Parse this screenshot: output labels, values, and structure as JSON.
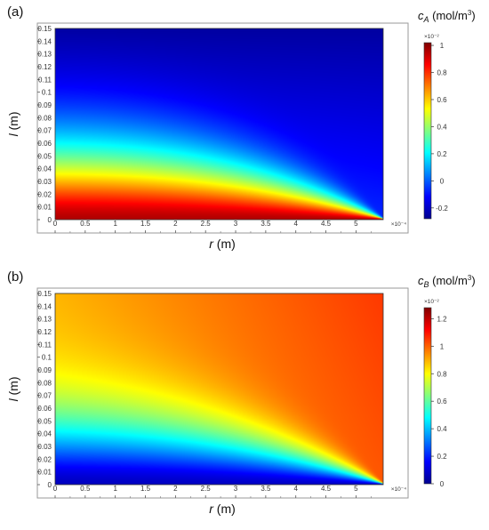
{
  "chart_data": [
    {
      "type": "heatmap",
      "panel_label": "(a)",
      "xlabel_var": "r",
      "xlabel_unit": " (m)",
      "ylabel_var": "l",
      "ylabel_unit": " (m)",
      "x_ticks": [
        "0",
        "0.5",
        "1",
        "1.5",
        "2",
        "2.5",
        "3",
        "3.5",
        "4",
        "4.5",
        "5"
      ],
      "x_tick_values": [
        0,
        0.5,
        1,
        1.5,
        2,
        2.5,
        3,
        3.5,
        4,
        4.5,
        5
      ],
      "x_exponent": "×10⁻⁴",
      "xlim": [
        0,
        5.6
      ],
      "y_ticks": [
        "0",
        "0.01",
        "0.02",
        "0.03",
        "0.04",
        "0.05",
        "0.06",
        "0.07",
        "0.08",
        "0.09",
        "0.1",
        "0.11",
        "0.12",
        "0.13",
        "0.14",
        "0.15"
      ],
      "y_tick_values": [
        0,
        0.01,
        0.02,
        0.03,
        0.04,
        0.05,
        0.06,
        0.07,
        0.08,
        0.09,
        0.1,
        0.11,
        0.12,
        0.13,
        0.14,
        0.15
      ],
      "ylim": [
        0,
        0.15
      ],
      "colorbar": {
        "var": "c",
        "sub": "A",
        "unit": " (mol/m",
        "unit_sup": "3",
        "unit_end": ")",
        "exponent": "×10⁻²",
        "ticks": [
          "1",
          "0.8",
          "0.6",
          "0.4",
          "0.2",
          "0",
          "-0.2"
        ],
        "tick_values": [
          1,
          0.8,
          0.6,
          0.4,
          0.2,
          0,
          -0.2
        ],
        "range": [
          -0.28,
          1.02
        ]
      },
      "field": "concentration of A, highest near l=0 and small r, decaying with l and r"
    },
    {
      "type": "heatmap",
      "panel_label": "(b)",
      "xlabel_var": "r",
      "xlabel_unit": " (m)",
      "ylabel_var": "l",
      "ylabel_unit": " (m)",
      "x_ticks": [
        "0",
        "0.5",
        "1",
        "1.5",
        "2",
        "2.5",
        "3",
        "3.5",
        "4",
        "4.5",
        "5"
      ],
      "x_tick_values": [
        0,
        0.5,
        1,
        1.5,
        2,
        2.5,
        3,
        3.5,
        4,
        4.5,
        5
      ],
      "x_exponent": "×10⁻⁴",
      "xlim": [
        0,
        5.6
      ],
      "y_ticks": [
        "0",
        "0.01",
        "0.02",
        "0.03",
        "0.04",
        "0.05",
        "0.06",
        "0.07",
        "0.08",
        "0.09",
        "0.1",
        "0.11",
        "0.12",
        "0.13",
        "0.14",
        "0.15"
      ],
      "y_tick_values": [
        0,
        0.01,
        0.02,
        0.03,
        0.04,
        0.05,
        0.06,
        0.07,
        0.08,
        0.09,
        0.1,
        0.11,
        0.12,
        0.13,
        0.14,
        0.15
      ],
      "ylim": [
        0,
        0.15
      ],
      "colorbar": {
        "var": "c",
        "sub": "B",
        "unit": " (mol/m",
        "unit_sup": "3",
        "unit_end": ")",
        "exponent": "×10⁻²",
        "ticks": [
          "1.2",
          "1",
          "0.8",
          "0.6",
          "0.4",
          "0.2",
          "0"
        ],
        "tick_values": [
          1.2,
          1,
          0.8,
          0.6,
          0.4,
          0.2,
          0
        ],
        "range": [
          0,
          1.28
        ]
      },
      "field": "concentration of B, lowest near l=0 and small r, rising with l and r"
    }
  ],
  "colormap": [
    "#00008f",
    "#0000ff",
    "#0080ff",
    "#00ffff",
    "#80ff80",
    "#ffff00",
    "#ff8000",
    "#ff0000",
    "#800000"
  ]
}
